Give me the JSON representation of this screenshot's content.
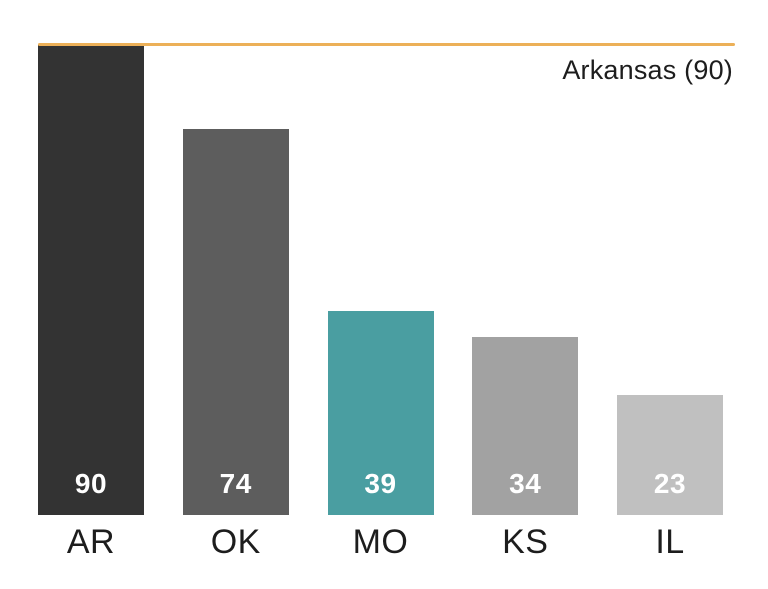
{
  "chart_data": {
    "type": "bar",
    "title": "",
    "xlabel": "",
    "ylabel": "",
    "categories": [
      "AR",
      "OK",
      "MO",
      "KS",
      "IL"
    ],
    "values": [
      90,
      74,
      39,
      34,
      23
    ],
    "bar_colors": [
      "#333333",
      "#5d5d5d",
      "#4a9ea1",
      "#a2a2a2",
      "#c0c0c0"
    ],
    "value_label_color": "#ffffff",
    "ylim": [
      0,
      90
    ],
    "grid": false,
    "legend": false,
    "annotation": {
      "text": "Arkansas (90)",
      "value": 90,
      "line_color": "#ecb058"
    }
  }
}
